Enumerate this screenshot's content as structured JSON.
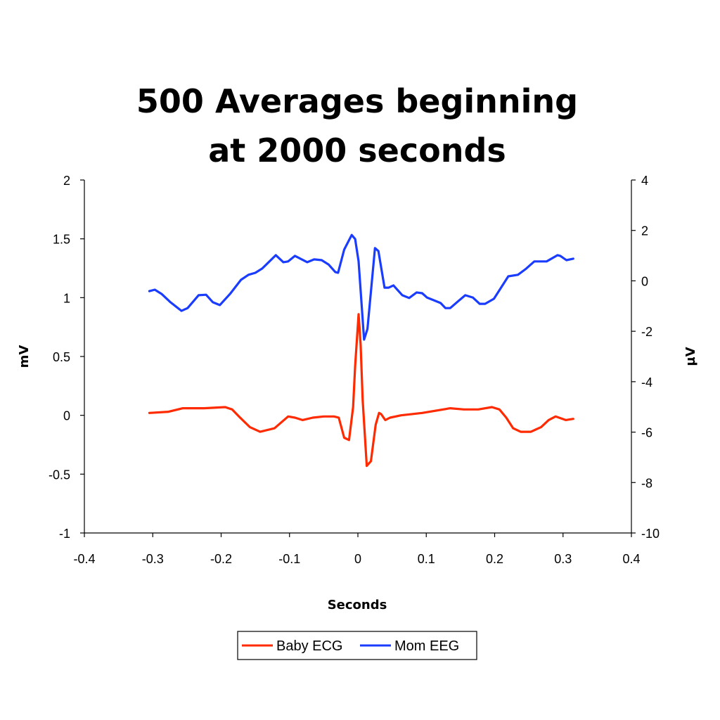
{
  "chart_data": {
    "type": "line",
    "title": [
      "500 Averages beginning",
      "at 2000 seconds"
    ],
    "xlabel": "Seconds",
    "ylabel": "mV",
    "y2label": "µV",
    "xlim": [
      -0.4,
      0.4
    ],
    "ylim": [
      -1,
      2
    ],
    "y2lim": [
      -10,
      4
    ],
    "xticks": [
      "-0.4",
      "-0.3",
      "-0.2",
      "-0.1",
      "0",
      "0.1",
      "0.2",
      "0.3",
      "0.4"
    ],
    "yticks": [
      "-1",
      "-0.5",
      "0",
      "0.5",
      "1",
      "1.5",
      "2"
    ],
    "y2ticks": [
      "-10",
      "-8",
      "-6",
      "-4",
      "-2",
      "0",
      "2",
      "4"
    ],
    "grid": false,
    "legend_position": "bottom",
    "series": [
      {
        "name": "Baby ECG",
        "axis": "left",
        "color": "#ff2a00",
        "x": [
          -0.305,
          -0.277,
          -0.256,
          -0.225,
          -0.194,
          -0.184,
          -0.174,
          -0.158,
          -0.143,
          -0.122,
          -0.102,
          -0.092,
          -0.081,
          -0.066,
          -0.05,
          -0.035,
          -0.028,
          -0.02,
          -0.013,
          -0.007,
          -0.004,
          0.001,
          0.004,
          0.007,
          0.013,
          0.019,
          0.026,
          0.031,
          0.034,
          0.04,
          0.047,
          0.063,
          0.094,
          0.135,
          0.155,
          0.176,
          0.196,
          0.207,
          0.217,
          0.227,
          0.238,
          0.253,
          0.268,
          0.279,
          0.289,
          0.304,
          0.315
        ],
        "y": [
          0.02,
          0.03,
          0.06,
          0.06,
          0.07,
          0.05,
          -0.01,
          -0.1,
          -0.14,
          -0.11,
          -0.01,
          -0.02,
          -0.04,
          -0.02,
          -0.01,
          -0.01,
          -0.02,
          -0.19,
          -0.21,
          0.07,
          0.42,
          0.86,
          0.6,
          0.13,
          -0.43,
          -0.39,
          -0.08,
          0.02,
          0.01,
          -0.04,
          -0.02,
          0.0,
          0.02,
          0.06,
          0.05,
          0.05,
          0.07,
          0.05,
          -0.02,
          -0.11,
          -0.14,
          -0.14,
          -0.1,
          -0.04,
          -0.01,
          -0.04,
          -0.03
        ]
      },
      {
        "name": "Mom EEG",
        "axis": "right",
        "color": "#1a3cff",
        "x": [
          -0.305,
          -0.297,
          -0.287,
          -0.274,
          -0.258,
          -0.249,
          -0.233,
          -0.222,
          -0.212,
          -0.202,
          -0.187,
          -0.171,
          -0.16,
          -0.15,
          -0.14,
          -0.12,
          -0.109,
          -0.102,
          -0.092,
          -0.074,
          -0.064,
          -0.053,
          -0.043,
          -0.033,
          -0.029,
          -0.02,
          -0.009,
          -0.004,
          0.001,
          0.009,
          0.014,
          0.025,
          0.03,
          0.039,
          0.045,
          0.052,
          0.065,
          0.075,
          0.086,
          0.094,
          0.101,
          0.111,
          0.121,
          0.128,
          0.135,
          0.147,
          0.157,
          0.168,
          0.178,
          0.186,
          0.199,
          0.22,
          0.234,
          0.245,
          0.258,
          0.276,
          0.292,
          0.296,
          0.305,
          0.315
        ],
        "y": [
          -0.41,
          -0.35,
          -0.52,
          -0.85,
          -1.19,
          -1.08,
          -0.57,
          -0.55,
          -0.85,
          -0.96,
          -0.52,
          0.04,
          0.24,
          0.32,
          0.49,
          1.02,
          0.74,
          0.77,
          0.99,
          0.74,
          0.85,
          0.82,
          0.65,
          0.35,
          0.32,
          1.24,
          1.82,
          1.66,
          0.77,
          -2.33,
          -1.91,
          1.3,
          1.18,
          -0.27,
          -0.27,
          -0.18,
          -0.57,
          -0.68,
          -0.46,
          -0.49,
          -0.66,
          -0.77,
          -0.88,
          -1.08,
          -1.08,
          -0.8,
          -0.57,
          -0.66,
          -0.91,
          -0.91,
          -0.71,
          0.18,
          0.24,
          0.46,
          0.77,
          0.77,
          1.02,
          0.99,
          0.82,
          0.88
        ]
      }
    ]
  }
}
